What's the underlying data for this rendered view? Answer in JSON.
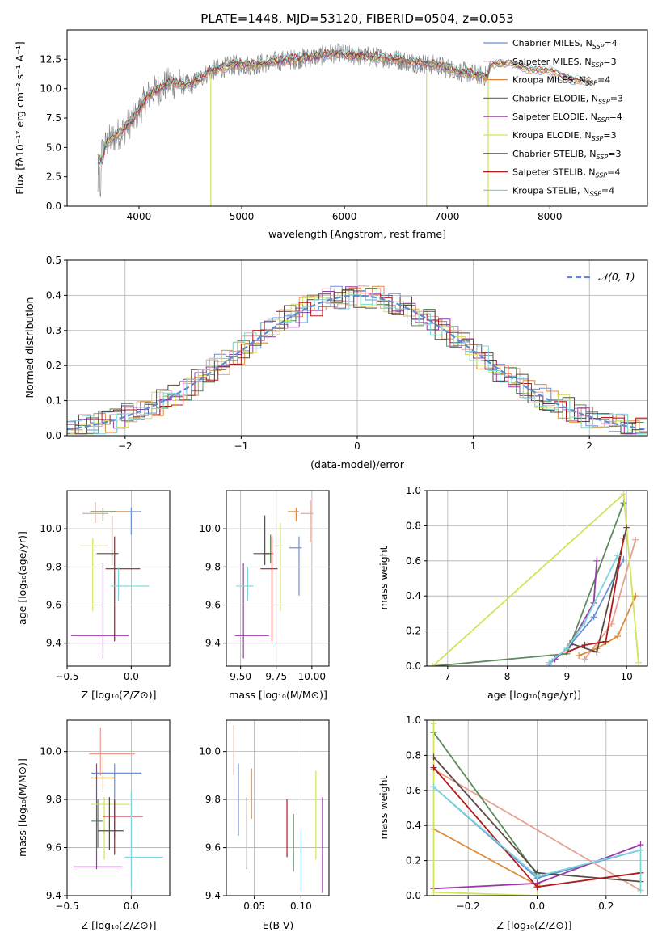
{
  "chart_data": [
    {
      "id": "spectrum",
      "type": "line",
      "title": "PLATE=1448, MJD=53120, FIBERID=0504, z=0.053",
      "xlabel": "wavelength [Angstrom, rest frame]",
      "ylabel": "Flux [fλ10⁻¹⁷ erg cm⁻² s⁻¹ A⁻¹]",
      "xlim": [
        3300,
        8950
      ],
      "ylim": [
        0,
        15
      ],
      "xticks": [
        4000,
        5000,
        6000,
        7000,
        8000
      ],
      "xtick_labels": [
        "4000",
        "5000",
        "6000",
        "7000",
        "8000"
      ],
      "yticks": [
        0,
        2.5,
        5,
        7.5,
        10,
        12.5
      ],
      "ytick_labels": [
        "0.0",
        "2.5",
        "5.0",
        "7.5",
        "10.0",
        "12.5"
      ],
      "legend_position": "upper-right",
      "data_series_name": "data",
      "continuum": {
        "x": [
          3600,
          3700,
          3850,
          3950,
          4100,
          4300,
          4500,
          4700,
          4900,
          5100,
          5300,
          5500,
          5700,
          5900,
          6100,
          6300,
          6500,
          6700,
          6900,
          7100,
          7300,
          7400
        ],
        "y": [
          4.0,
          5.5,
          6.5,
          7.5,
          9.5,
          10.5,
          10.3,
          11.5,
          12.0,
          12.0,
          12.3,
          12.5,
          12.7,
          13.0,
          12.8,
          12.7,
          12.5,
          12.2,
          12.0,
          11.5,
          11.2,
          11.0
        ]
      },
      "model_extension": {
        "x": [
          7400,
          7600,
          7800,
          8000,
          8200,
          8400
        ],
        "y": [
          12.0,
          12.2,
          11.6,
          11.5,
          10.8,
          10.6
        ]
      },
      "series": [
        {
          "name": "Chabrier MILES, N_SSP=4",
          "color": "#6a8fd8"
        },
        {
          "name": "Salpeter MILES, N_SSP=3",
          "color": "#e8a090"
        },
        {
          "name": "Kroupa MILES, N_SSP=4",
          "color": "#e08a3a"
        },
        {
          "name": "Chabrier ELODIE, N_SSP=3",
          "color": "#5e8a5e"
        },
        {
          "name": "Salpeter ELODIE, N_SSP=4",
          "color": "#9a3aa8"
        },
        {
          "name": "Kroupa ELODIE, N_SSP=3",
          "color": "#d4e35a"
        },
        {
          "name": "Chabrier STELIB, N_SSP=3",
          "color": "#5a4a42"
        },
        {
          "name": "Salpeter STELIB, N_SSP=4",
          "color": "#b01a1a"
        },
        {
          "name": "Kroupa STELIB, N_SSP=4",
          "color": "#7dd6dc"
        }
      ],
      "sky_lines": [
        4700,
        6800,
        7400
      ]
    },
    {
      "id": "residuals",
      "type": "histogram",
      "xlabel": "(data-model)/error",
      "ylabel": "Normed distribution",
      "xlim": [
        -2.5,
        2.5
      ],
      "ylim": [
        0,
        0.5
      ],
      "xticks": [
        -2,
        -1,
        0,
        1,
        2
      ],
      "xtick_labels": [
        "−2",
        "−1",
        "0",
        "1",
        "2"
      ],
      "yticks": [
        0,
        0.1,
        0.2,
        0.3,
        0.4,
        0.5
      ],
      "ytick_labels": [
        "0.0",
        "0.1",
        "0.2",
        "0.3",
        "0.4",
        "0.5"
      ],
      "bin_width": 0.1,
      "reference_curve": {
        "name": "𝒩(0, 1)",
        "color": "#5b8bd0",
        "mu": 0,
        "sigma": 1
      },
      "legend_position": "upper-right",
      "series_colors": [
        "#6a8fd8",
        "#e8a090",
        "#e08a3a",
        "#5e8a5e",
        "#9a3aa8",
        "#d4e35a",
        "#5a4a42",
        "#b01a1a",
        "#7dd6dc"
      ]
    },
    {
      "id": "age_vs_Z",
      "type": "errorbar",
      "xlabel": "Z [log₁₀(Z/Z⊙)]",
      "ylabel": "age  [log₁₀(age/yr)]",
      "xlim": [
        -0.5,
        0.3
      ],
      "ylim": [
        9.28,
        10.2
      ],
      "xticks": [
        -0.5,
        0.0
      ],
      "xtick_labels": [
        "−0.5",
        "0.0"
      ],
      "yticks": [
        9.4,
        9.6,
        9.8,
        10.0
      ],
      "ytick_labels": [
        "9.4",
        "9.6",
        "9.8",
        "10.0"
      ],
      "points": [
        {
          "x": 0.0,
          "xerr": [
            0.13,
            0.08
          ],
          "y": 10.09,
          "yerr": [
            0.12,
            0.02
          ],
          "color": "#6a8fd8"
        },
        {
          "x": -0.28,
          "xerr": [
            0.1,
            0.1
          ],
          "y": 10.08,
          "yerr": [
            0.05,
            0.06
          ],
          "color": "#e8a090"
        },
        {
          "x": -0.22,
          "xerr": [
            0.1,
            0.2
          ],
          "y": 10.09,
          "yerr": [
            0.05,
            0.02
          ],
          "color": "#e08a3a"
        },
        {
          "x": -0.22,
          "xerr": [
            0.1,
            0.1
          ],
          "y": 10.09,
          "yerr": [
            0.05,
            0.02
          ],
          "color": "#5e8a5e"
        },
        {
          "x": -0.22,
          "xerr": [
            0.25,
            0.2
          ],
          "y": 9.44,
          "yerr": [
            0.12,
            0.38
          ],
          "color": "#9a3aa8"
        },
        {
          "x": -0.3,
          "xerr": [
            0.1,
            0.12
          ],
          "y": 9.91,
          "yerr": [
            0.34,
            0.04
          ],
          "color": "#d4e35a"
        },
        {
          "x": -0.15,
          "xerr": [
            0.12,
            0.05
          ],
          "y": 9.87,
          "yerr": [
            0.06,
            0.2
          ],
          "color": "#5a4a42"
        },
        {
          "x": -0.13,
          "xerr": [
            0.07,
            0.2
          ],
          "y": 9.79,
          "yerr": [
            0.38,
            0.17
          ],
          "color": "#b01a1a"
        },
        {
          "x": -0.1,
          "xerr": [
            0.06,
            0.24
          ],
          "y": 9.7,
          "yerr": [
            0.08,
            0.1
          ],
          "color": "#7dd6dc"
        }
      ]
    },
    {
      "id": "age_vs_mass",
      "type": "errorbar",
      "xlabel": "mass [log₁₀(M/M⊙)]",
      "ylabel": "",
      "xlim": [
        9.4,
        10.12
      ],
      "ylim": [
        9.28,
        10.2
      ],
      "xticks": [
        9.5,
        9.75,
        10.0
      ],
      "xtick_labels": [
        "9.50",
        "9.75",
        "10.00"
      ],
      "yticks": [
        9.4,
        9.6,
        9.8,
        10.0
      ],
      "ytick_labels": [
        "9.4",
        "9.6",
        "9.8",
        "10.0"
      ],
      "points": [
        {
          "x": 9.91,
          "xerr": [
            0.07,
            0.02
          ],
          "y": 9.9,
          "yerr": [
            0.25,
            0.06
          ],
          "color": "#6a8fd8"
        },
        {
          "x": 9.99,
          "xerr": [
            0.07,
            0.02
          ],
          "y": 10.08,
          "yerr": [
            0.15,
            0.07
          ],
          "color": "#e8a090"
        },
        {
          "x": 9.89,
          "xerr": [
            0.06,
            0.02
          ],
          "y": 10.09,
          "yerr": [
            0.05,
            0.02
          ],
          "color": "#e08a3a"
        },
        {
          "x": 9.71,
          "xerr": [
            0.05,
            0.02
          ],
          "y": 9.87,
          "yerr": [
            0.05,
            0.1
          ],
          "color": "#5e8a5e"
        },
        {
          "x": 9.52,
          "xerr": [
            0.06,
            0.18
          ],
          "y": 9.44,
          "yerr": [
            0.12,
            0.38
          ],
          "color": "#9a3aa8"
        },
        {
          "x": 9.78,
          "xerr": [
            0.04,
            0.02
          ],
          "y": 9.91,
          "yerr": [
            0.34,
            0.12
          ],
          "color": "#d4e35a"
        },
        {
          "x": 9.67,
          "xerr": [
            0.08,
            0.04
          ],
          "y": 9.87,
          "yerr": [
            0.06,
            0.2
          ],
          "color": "#5a4a42"
        },
        {
          "x": 9.72,
          "xerr": [
            0.08,
            0.04
          ],
          "y": 9.79,
          "yerr": [
            0.38,
            0.17
          ],
          "color": "#b01a1a"
        },
        {
          "x": 9.55,
          "xerr": [
            0.08,
            0.04
          ],
          "y": 9.7,
          "yerr": [
            0.08,
            0.1
          ],
          "color": "#7dd6dc"
        }
      ]
    },
    {
      "id": "weight_vs_age",
      "type": "line",
      "xlabel": "age  [log₁₀(age/yr)]",
      "ylabel": "mass weight",
      "xlim": [
        6.65,
        10.35
      ],
      "ylim": [
        0,
        1
      ],
      "xticks": [
        7,
        8,
        9,
        10
      ],
      "xtick_labels": [
        "7",
        "8",
        "9",
        "10"
      ],
      "yticks": [
        0,
        0.2,
        0.4,
        0.6,
        0.8,
        1.0
      ],
      "ytick_labels": [
        "0.0",
        "0.2",
        "0.4",
        "0.6",
        "0.8",
        "1.0"
      ],
      "series": [
        {
          "color": "#6a8fd8",
          "x": [
            8.7,
            9.0,
            9.45,
            9.95
          ],
          "y": [
            0.01,
            0.1,
            0.28,
            0.61
          ]
        },
        {
          "color": "#e8a090",
          "x": [
            9.3,
            9.75,
            10.15
          ],
          "y": [
            0.04,
            0.24,
            0.72
          ]
        },
        {
          "color": "#e08a3a",
          "x": [
            9.2,
            9.5,
            9.85,
            10.15
          ],
          "y": [
            0.06,
            0.1,
            0.17,
            0.4
          ]
        },
        {
          "color": "#5e8a5e",
          "x": [
            6.75,
            9.0,
            9.95
          ],
          "y": [
            0.0,
            0.07,
            0.93
          ]
        },
        {
          "color": "#9a3aa8",
          "x": [
            8.8,
            9.05,
            9.45,
            9.5
          ],
          "y": [
            0.04,
            0.12,
            0.36,
            0.6
          ]
        },
        {
          "color": "#d4e35a",
          "x": [
            6.75,
            9.95,
            10.2
          ],
          "y": [
            0.0,
            0.98,
            0.02
          ]
        },
        {
          "color": "#5a4a42",
          "x": [
            9.05,
            9.5,
            10.0
          ],
          "y": [
            0.13,
            0.08,
            0.79
          ]
        },
        {
          "color": "#b01a1a",
          "x": [
            9.0,
            9.3,
            9.65,
            9.95
          ],
          "y": [
            0.08,
            0.12,
            0.14,
            0.73
          ]
        },
        {
          "color": "#7dd6dc",
          "x": [
            8.7,
            9.0,
            9.3,
            9.85
          ],
          "y": [
            0.02,
            0.1,
            0.25,
            0.63
          ]
        }
      ]
    },
    {
      "id": "mass_vs_Z",
      "type": "errorbar",
      "xlabel": "Z [log₁₀(Z/Z⊙)]",
      "ylabel": "mass [log₁₀(M/M⊙)]",
      "xlim": [
        -0.5,
        0.3
      ],
      "ylim": [
        9.4,
        10.13
      ],
      "xticks": [
        -0.5,
        0.0
      ],
      "xtick_labels": [
        "−0.5",
        "0.0"
      ],
      "yticks": [
        9.4,
        9.6,
        9.8,
        10.0
      ],
      "ytick_labels": [
        "9.4",
        "9.6",
        "9.8",
        "10.0"
      ],
      "points": [
        {
          "x": -0.13,
          "xerr": [
            0.18,
            0.21
          ],
          "y": 9.91,
          "yerr": [
            0.27,
            0.04
          ],
          "color": "#6a8fd8"
        },
        {
          "x": -0.24,
          "xerr": [
            0.09,
            0.27
          ],
          "y": 9.99,
          "yerr": [
            0.09,
            0.11
          ],
          "color": "#e8a090"
        },
        {
          "x": -0.22,
          "xerr": [
            0.09,
            0.09
          ],
          "y": 9.89,
          "yerr": [
            0.06,
            0.09
          ],
          "color": "#e08a3a"
        },
        {
          "x": -0.26,
          "xerr": [
            0.05,
            0.04
          ],
          "y": 9.71,
          "yerr": [
            0.11,
            0.09
          ],
          "color": "#5e8a5e"
        },
        {
          "x": -0.27,
          "xerr": [
            0.18,
            0.2
          ],
          "y": 9.52,
          "yerr": [
            0.01,
            0.43
          ],
          "color": "#9a3aa8"
        },
        {
          "x": -0.21,
          "xerr": [
            0.1,
            0.2
          ],
          "y": 9.78,
          "yerr": [
            0.23,
            0.03
          ],
          "color": "#d4e35a"
        },
        {
          "x": -0.17,
          "xerr": [
            0.09,
            0.11
          ],
          "y": 9.67,
          "yerr": [
            0.08,
            0.14
          ],
          "color": "#5a4a42"
        },
        {
          "x": -0.13,
          "xerr": [
            0.09,
            0.22
          ],
          "y": 9.73,
          "yerr": [
            0.16,
            0.07
          ],
          "color": "#b01a1a"
        },
        {
          "x": 0.0,
          "xerr": [
            0.05,
            0.25
          ],
          "y": 9.56,
          "yerr": [
            0.13,
            0.27
          ],
          "color": "#7dd6dc"
        }
      ]
    },
    {
      "id": "mass_vs_EBV",
      "type": "errorbar",
      "xlabel": "E(B-V)",
      "ylabel": "",
      "xlim": [
        0.02,
        0.13
      ],
      "ylim": [
        9.4,
        10.13
      ],
      "xticks": [
        0.05,
        0.1
      ],
      "xtick_labels": [
        "0.05",
        "0.10"
      ],
      "yticks": [
        9.4,
        9.6,
        9.8,
        10.0
      ],
      "ytick_labels": [
        "9.4",
        "9.6",
        "9.8",
        "10.0"
      ],
      "points": [
        {
          "x": 0.033,
          "y": 9.8,
          "yerr": [
            0.15,
            0.15
          ],
          "color": "#6a8fd8"
        },
        {
          "x": 0.028,
          "y": 10.0,
          "yerr": [
            0.1,
            0.11
          ],
          "color": "#e8a090"
        },
        {
          "x": 0.047,
          "y": 9.82,
          "yerr": [
            0.1,
            0.11
          ],
          "color": "#e08a3a"
        },
        {
          "x": 0.092,
          "y": 9.62,
          "yerr": [
            0.12,
            0.12
          ],
          "color": "#5e8a5e"
        },
        {
          "x": 0.123,
          "y": 9.61,
          "yerr": [
            0.2,
            0.2
          ],
          "color": "#9a3aa8"
        },
        {
          "x": 0.116,
          "y": 9.73,
          "yerr": [
            0.18,
            0.19
          ],
          "color": "#d4e35a"
        },
        {
          "x": 0.042,
          "y": 9.66,
          "yerr": [
            0.15,
            0.15
          ],
          "color": "#5a4a42"
        },
        {
          "x": 0.085,
          "y": 9.68,
          "yerr": [
            0.12,
            0.12
          ],
          "color": "#b01a1a"
        },
        {
          "x": 0.1,
          "y": 9.55,
          "yerr": [
            0.13,
            0.12
          ],
          "color": "#7dd6dc"
        }
      ]
    },
    {
      "id": "weight_vs_Z",
      "type": "line",
      "xlabel": "Z [log₁₀(Z/Z⊙)]",
      "ylabel": "mass weight",
      "xlim": [
        -0.32,
        0.32
      ],
      "ylim": [
        0,
        1
      ],
      "xticks": [
        -0.2,
        0.0,
        0.2
      ],
      "xtick_labels": [
        "−0.2",
        "0.0",
        "0.2"
      ],
      "yticks": [
        0,
        0.2,
        0.4,
        0.6,
        0.8,
        1.0
      ],
      "ytick_labels": [
        "0.0",
        "0.2",
        "0.4",
        "0.6",
        "0.8",
        "1.0"
      ],
      "series": [
        {
          "color": "#6a8fd8",
          "x": [
            -0.3,
            0.0,
            0.3
          ],
          "y": [
            0.62,
            0.1,
            0.26
          ]
        },
        {
          "color": "#e8a090",
          "x": [
            -0.3,
            0.3
          ],
          "y": [
            0.72,
            0.03
          ]
        },
        {
          "color": "#e08a3a",
          "x": [
            -0.3,
            0.0
          ],
          "y": [
            0.38,
            0.06
          ]
        },
        {
          "color": "#5e8a5e",
          "x": [
            -0.3,
            0.0
          ],
          "y": [
            0.93,
            0.12
          ]
        },
        {
          "color": "#9a3aa8",
          "x": [
            -0.3,
            0.0,
            0.3
          ],
          "y": [
            0.04,
            0.07,
            0.29
          ]
        },
        {
          "color": "#d4e35a",
          "x": [
            -0.3,
            -0.3,
            0.0
          ],
          "y": [
            0.98,
            0.02,
            0.0
          ]
        },
        {
          "color": "#5a4a42",
          "x": [
            -0.3,
            0.0,
            0.3
          ],
          "y": [
            0.79,
            0.13,
            0.08
          ]
        },
        {
          "color": "#b01a1a",
          "x": [
            -0.3,
            0.0,
            0.3
          ],
          "y": [
            0.73,
            0.05,
            0.13
          ]
        },
        {
          "color": "#7dd6dc",
          "x": [
            -0.3,
            0.0,
            0.3,
            0.3
          ],
          "y": [
            0.62,
            0.11,
            0.26,
            0.03
          ]
        }
      ]
    }
  ]
}
